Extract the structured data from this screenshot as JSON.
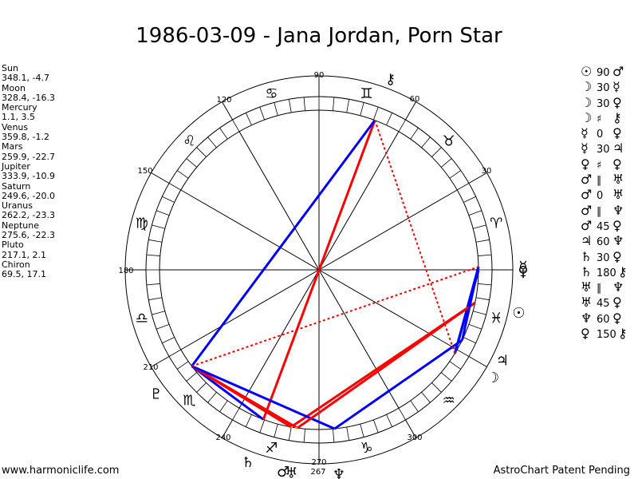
{
  "title": "1986-03-09 - Jana Jordan, Porn Star",
  "planets": [
    {
      "name": "Sun",
      "coords": "348.1, -4.7",
      "lon": 348.1,
      "glyph": "☉"
    },
    {
      "name": "Moon",
      "coords": "328.4, -16.3",
      "lon": 328.4,
      "glyph": "☽"
    },
    {
      "name": "Mercury",
      "coords": "1.1, 3.5",
      "lon": 1.1,
      "glyph": "☿"
    },
    {
      "name": "Venus",
      "coords": "359.8, -1.2",
      "lon": 359.8,
      "glyph": "♀"
    },
    {
      "name": "Mars",
      "coords": "259.9, -22.7",
      "lon": 259.9,
      "glyph": "♂"
    },
    {
      "name": "Jupiter",
      "coords": "333.9, -10.9",
      "lon": 333.9,
      "glyph": "♃"
    },
    {
      "name": "Saturn",
      "coords": "249.6, -20.0",
      "lon": 249.6,
      "glyph": "♄"
    },
    {
      "name": "Uranus",
      "coords": "262.2, -23.3",
      "lon": 262.2,
      "glyph": "♅"
    },
    {
      "name": "Neptune",
      "coords": "275.6, -22.3",
      "lon": 275.6,
      "glyph": "♆"
    },
    {
      "name": "Pluto",
      "coords": "217.1, 2.1",
      "lon": 217.1,
      "glyph": "♇"
    },
    {
      "name": "Chiron",
      "coords": "69.5, 17.1",
      "lon": 69.5,
      "glyph": "⚷"
    }
  ],
  "aspects": [
    {
      "p1": "☉",
      "angle": "90",
      "p2": "♂",
      "color": "#ff0000"
    },
    {
      "p1": "☽",
      "angle": "30",
      "p2": "☿",
      "color": "#0000ff"
    },
    {
      "p1": "☽",
      "angle": "30",
      "p2": "♀",
      "color": "#0000ff"
    },
    {
      "p1": "☽",
      "angle": "♯",
      "p2": "⚷",
      "color": "#0000ff"
    },
    {
      "p1": "☿",
      "angle": "0",
      "p2": "♀",
      "color": "#0000ff"
    },
    {
      "p1": "☿",
      "angle": "30",
      "p2": "♃",
      "color": "#0000ff"
    },
    {
      "p1": "♀",
      "angle": "♯",
      "p2": "♀",
      "color": "#0000ff"
    },
    {
      "p1": "♂",
      "angle": "∥",
      "p2": "♅",
      "color": "#0000ff"
    },
    {
      "p1": "♂",
      "angle": "0",
      "p2": "♅",
      "color": "#0000ff"
    },
    {
      "p1": "♂",
      "angle": "∥",
      "p2": "♆",
      "color": "#0000ff"
    },
    {
      "p1": "♂",
      "angle": "45",
      "p2": "♀",
      "color": "#ff0000"
    },
    {
      "p1": "♃",
      "angle": "60",
      "p2": "♆",
      "color": "#0000ff"
    },
    {
      "p1": "♄",
      "angle": "30",
      "p2": "♀",
      "color": "#0000ff"
    },
    {
      "p1": "♄",
      "angle": "180",
      "p2": "⚷",
      "color": "#ff0000"
    },
    {
      "p1": "♅",
      "angle": "∥",
      "p2": "♆",
      "color": "#0000ff"
    },
    {
      "p1": "♅",
      "angle": "45",
      "p2": "♀",
      "color": "#ff0000"
    },
    {
      "p1": "♆",
      "angle": "60",
      "p2": "♀",
      "color": "#0000ff"
    },
    {
      "p1": "♀",
      "angle": "150",
      "p2": "⚷",
      "color": "#ff0000"
    }
  ],
  "wheel": {
    "degree_labels": [
      "30",
      "60",
      "90",
      "120",
      "150",
      "180",
      "210",
      "240",
      "267",
      "270",
      "300"
    ],
    "signs": [
      "♈",
      "♉",
      "♊",
      "♋",
      "♌",
      "♍",
      "♎",
      "♏",
      "♐",
      "♑",
      "♒",
      "♓"
    ],
    "aspect_lines": [
      {
        "from": 348.1,
        "to": 259.9,
        "color": "#ff0000",
        "style": "solid",
        "label": "Sun-Mars square"
      },
      {
        "from": 328.4,
        "to": 1.1,
        "color": "#0000ff",
        "style": "solid",
        "label": "Moon-Mercury"
      },
      {
        "from": 333.9,
        "to": 275.6,
        "color": "#0000ff",
        "style": "solid",
        "label": "Jupiter-Neptune"
      },
      {
        "from": 249.6,
        "to": 217.1,
        "color": "#0000ff",
        "style": "solid",
        "label": "Saturn-Pluto"
      },
      {
        "from": 249.6,
        "to": 69.5,
        "color": "#ff0000",
        "style": "solid",
        "label": "Saturn-Chiron opposition"
      },
      {
        "from": 262.2,
        "to": 217.1,
        "color": "#ff0000",
        "style": "solid",
        "label": "Uranus-Pluto"
      },
      {
        "from": 259.9,
        "to": 217.1,
        "color": "#ff0000",
        "style": "solid",
        "label": "Mars-Pluto"
      },
      {
        "from": 275.6,
        "to": 217.1,
        "color": "#0000ff",
        "style": "solid",
        "label": "Neptune-Pluto"
      },
      {
        "from": 217.1,
        "to": 69.5,
        "color": "#0000ff",
        "style": "solid",
        "label": "Pluto-Chiron"
      },
      {
        "from": 328.4,
        "to": 359.8,
        "color": "#0000ff",
        "style": "solid",
        "label": "Moon-Venus"
      },
      {
        "from": 348.1,
        "to": 262.2,
        "color": "#ff0000",
        "style": "solid",
        "label": "Sun-Uranus"
      },
      {
        "from": 333.9,
        "to": 1.1,
        "color": "#0000ff",
        "style": "solid",
        "label": "Jupiter-Mercury"
      },
      {
        "from": 217.1,
        "to": 1.1,
        "color": "#ff0000",
        "style": "dotted",
        "label": "Pluto-Mercury"
      },
      {
        "from": 328.4,
        "to": 69.5,
        "color": "#ff0000",
        "style": "dotted",
        "label": "Moon-Chiron"
      },
      {
        "from": 262.2,
        "to": 259.9,
        "color": "#ffa500",
        "style": "dotted",
        "label": "Uranus-Mars"
      }
    ]
  },
  "footer": {
    "left": "www.harmoniclife.com",
    "right": "AstroChart Patent Pending"
  }
}
